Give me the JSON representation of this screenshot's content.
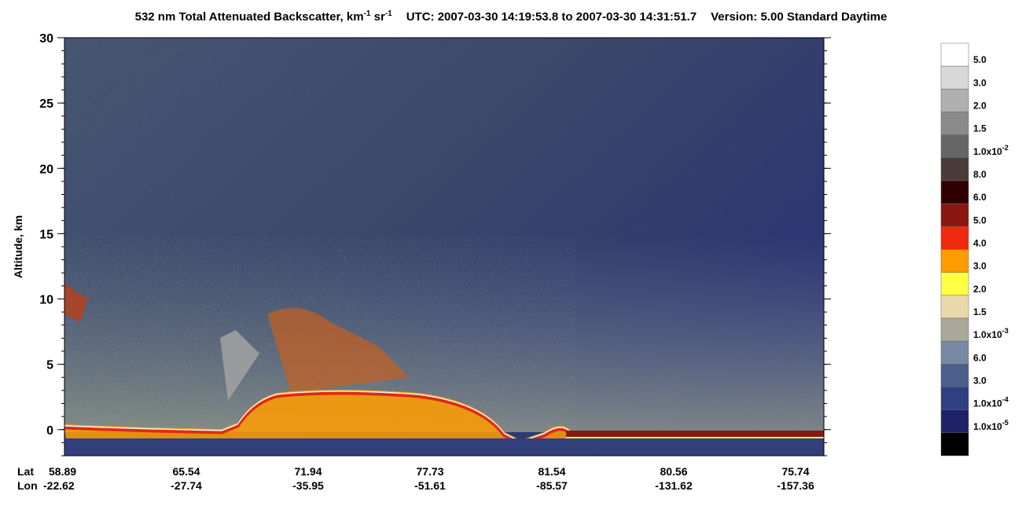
{
  "chart_data": {
    "type": "heatmap",
    "title": {
      "main": "532 nm Total Attenuated Backscatter, km",
      "sup1": "-1",
      "unit2": " sr",
      "sup2": "-1",
      "time": "UTC:  2007-03-30 14:19:53.8  to  2007-03-30 14:31:51.7",
      "version": "Version: 5.00  Standard  Daytime"
    },
    "ylabel": "Altitude, km",
    "ylim": [
      -2,
      30
    ],
    "yticks": [
      0,
      5,
      10,
      15,
      20,
      25,
      30
    ],
    "x_row_labels": [
      "Lat",
      "Lon"
    ],
    "lat": [
      "58.89",
      "65.54",
      "71.94",
      "77.73",
      "81.54",
      "80.56",
      "75.74"
    ],
    "lon": [
      "-22.62",
      "-27.74",
      "-35.95",
      "-51.61",
      "-85.57",
      "-131.62",
      "-157.36"
    ],
    "colorbar": {
      "colors": [
        "#ffffff",
        "#d8d8d8",
        "#b0b0b0",
        "#8a8a8a",
        "#656565",
        "#4a3c38",
        "#300000",
        "#8a1810",
        "#f02a0e",
        "#ff9c00",
        "#ffff44",
        "#e9d9aa",
        "#a9a99a",
        "#788aa2",
        "#4c5e8c",
        "#2e3f82",
        "#1e2266",
        "#000000"
      ],
      "labels": [
        {
          "text": "5.0"
        },
        {
          "text": "3.0"
        },
        {
          "text": "2.0"
        },
        {
          "text": "1.5"
        },
        {
          "text": "1.0x10",
          "sup": "-2"
        },
        {
          "text": "8.0"
        },
        {
          "text": "6.0"
        },
        {
          "text": "5.0"
        },
        {
          "text": "4.0"
        },
        {
          "text": "3.0"
        },
        {
          "text": "2.0"
        },
        {
          "text": "1.5"
        },
        {
          "text": "1.0x10",
          "sup": "-3"
        },
        {
          "text": "6.0"
        },
        {
          "text": "3.0"
        },
        {
          "text": "1.0x10",
          "sup": "-4"
        },
        {
          "text": "1.0x10",
          "sup": "-5"
        }
      ]
    }
  }
}
